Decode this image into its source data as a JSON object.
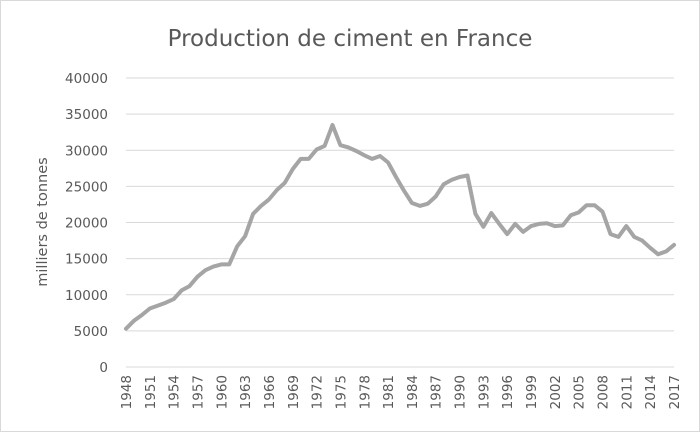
{
  "chart_data": {
    "type": "line",
    "title": "Production de ciment en France",
    "xlabel": "",
    "ylabel": "milliers de tonnes",
    "ylim": [
      0,
      40000
    ],
    "y_ticks": [
      0,
      5000,
      10000,
      15000,
      20000,
      25000,
      30000,
      35000,
      40000
    ],
    "x_ticks": [
      1948,
      1951,
      1954,
      1957,
      1960,
      1963,
      1966,
      1969,
      1972,
      1975,
      1978,
      1981,
      1984,
      1987,
      1990,
      1993,
      1996,
      1999,
      2002,
      2005,
      2008,
      2011,
      2014,
      2017
    ],
    "x_range": [
      1948,
      2017
    ],
    "grid": "horizontal",
    "legend": "none",
    "line_color": "#a5a5a5",
    "series": [
      {
        "x": [
          1948,
          1949,
          1950,
          1951,
          1952,
          1953,
          1954,
          1955,
          1956,
          1957,
          1958,
          1959,
          1960,
          1961,
          1962,
          1963,
          1964,
          1965,
          1966,
          1967,
          1968,
          1969,
          1970,
          1971,
          1972,
          1973,
          1974,
          1975,
          1976,
          1977,
          1978,
          1979,
          1980,
          1981,
          1982,
          1983,
          1984,
          1985,
          1986,
          1987,
          1988,
          1989,
          1990,
          1991,
          1992,
          1993,
          1994,
          1995,
          1996,
          1997,
          1998,
          1999,
          2000,
          2001,
          2002,
          2003,
          2004,
          2005,
          2006,
          2007,
          2008,
          2009,
          2010,
          2011,
          2012,
          2013,
          2014,
          2015,
          2016,
          2017
        ],
        "values": [
          5300,
          6400,
          7200,
          8100,
          8500,
          8900,
          9400,
          10600,
          11200,
          12500,
          13400,
          13900,
          14200,
          14200,
          16700,
          18100,
          21200,
          22300,
          23200,
          24500,
          25500,
          27400,
          28800,
          28800,
          30100,
          30600,
          33500,
          30700,
          30400,
          29900,
          29300,
          28800,
          29200,
          28300,
          26300,
          24400,
          22700,
          22300,
          22600,
          23600,
          25300,
          25900,
          26300,
          26500,
          21200,
          19400,
          21300,
          19800,
          18400,
          19800,
          18700,
          19500,
          19800,
          19900,
          19500,
          19600,
          21000,
          21400,
          22400,
          22400,
          21500,
          18400,
          18000,
          19500,
          18000,
          17500,
          16500,
          15600,
          16000,
          16900
        ]
      }
    ]
  }
}
